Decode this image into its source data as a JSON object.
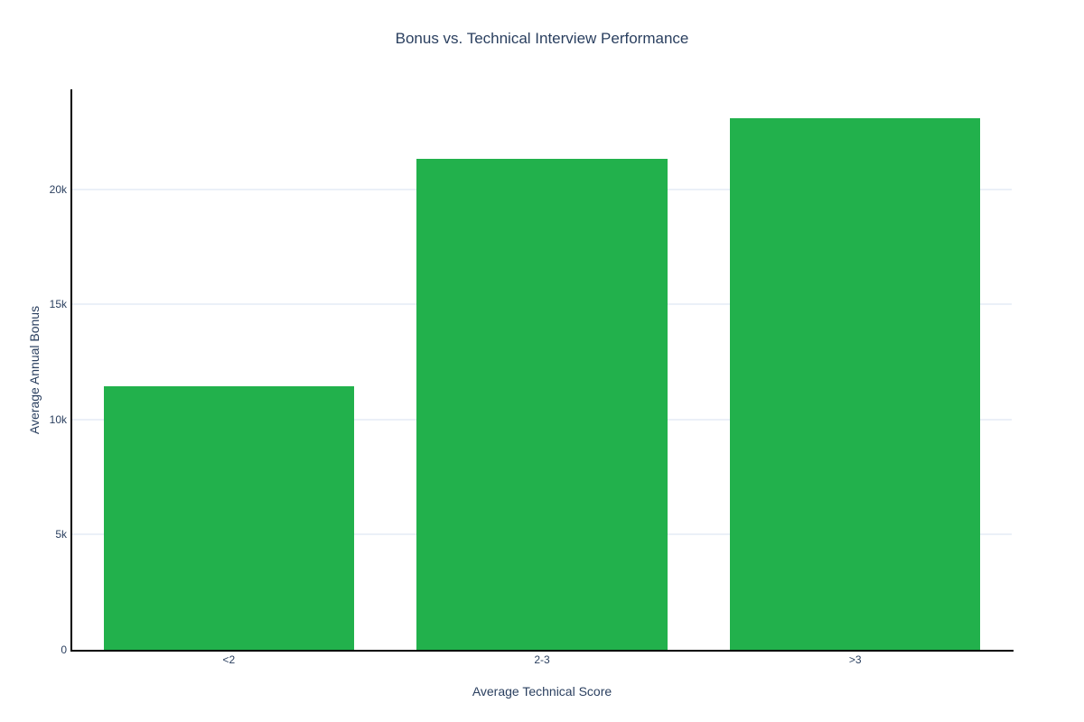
{
  "chart_data": {
    "type": "bar",
    "title": "Bonus vs. Technical Interview Performance",
    "xlabel": "Average Technical Score",
    "ylabel": "Average Annual Bonus",
    "categories": [
      "<2",
      "2-3",
      ">3"
    ],
    "values": [
      11450,
      21330,
      23100
    ],
    "ylim": [
      0,
      24300
    ],
    "yticks": [
      {
        "value": 0,
        "label": "0"
      },
      {
        "value": 5000,
        "label": "5k"
      },
      {
        "value": 10000,
        "label": "10k"
      },
      {
        "value": 15000,
        "label": "15k"
      },
      {
        "value": 20000,
        "label": "20k"
      }
    ],
    "legend_position": "none",
    "grid": true,
    "colors": {
      "bar": "#22b14c",
      "grid": "#ebf0f8",
      "axis_line": "#000000",
      "text": "#2a3f5f",
      "background": "#ffffff"
    }
  }
}
